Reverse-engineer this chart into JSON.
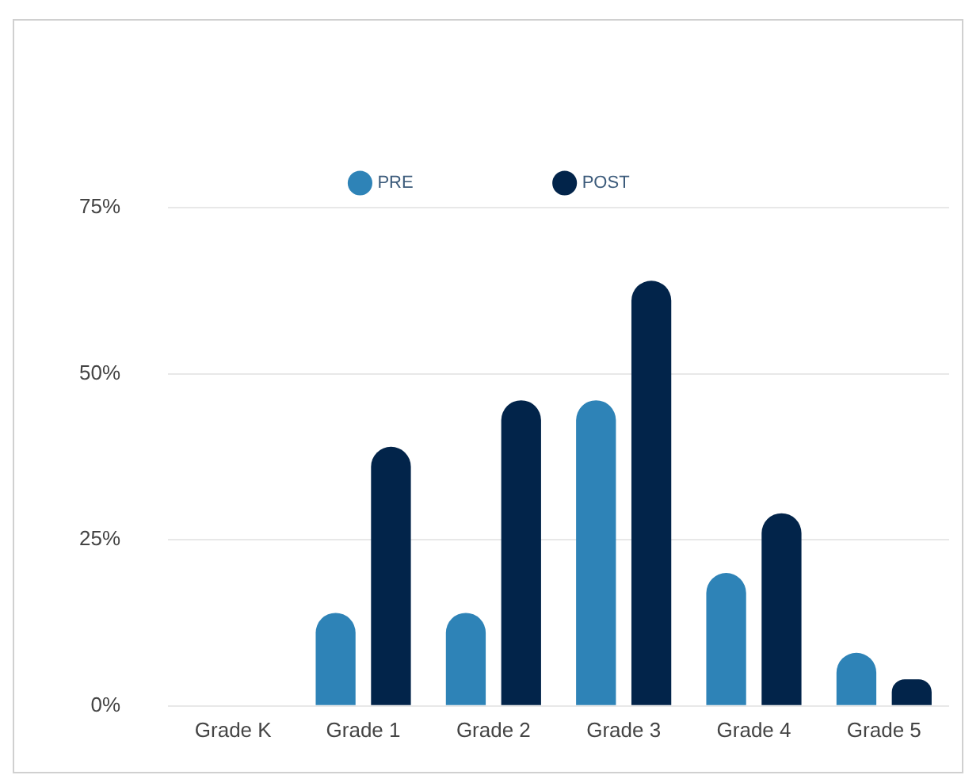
{
  "chart_data": {
    "type": "bar",
    "categories": [
      "Grade K",
      "Grade 1",
      "Grade 2",
      "Grade 3",
      "Grade 4",
      "Grade 5"
    ],
    "series": [
      {
        "name": "PRE",
        "color": "#2e83b7",
        "values": [
          0,
          14,
          14,
          46,
          20,
          8
        ]
      },
      {
        "name": "POST",
        "color": "#02244a",
        "values": [
          0,
          39,
          46,
          64,
          29,
          4
        ]
      }
    ],
    "ylim": [
      0,
      75
    ],
    "yticks": [
      {
        "value": 0,
        "label": "0%"
      },
      {
        "value": 25,
        "label": "25%"
      },
      {
        "value": 50,
        "label": "50%"
      },
      {
        "value": 75,
        "label": "75%"
      }
    ],
    "grid": "y",
    "legend": "top"
  }
}
